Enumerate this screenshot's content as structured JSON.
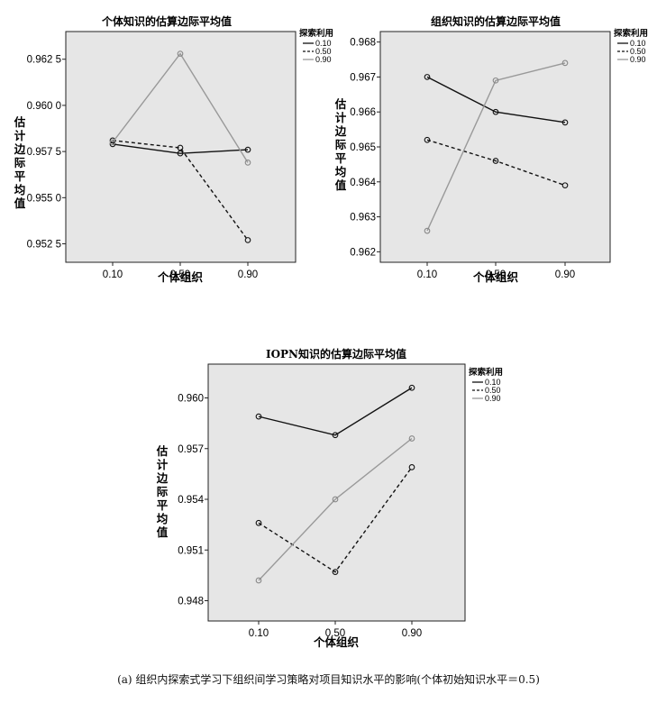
{
  "caption": "(a) 组织内探索式学习下组织间学习策略对项目知识水平的影响(个体初始知识水平＝0.5)",
  "colors": {
    "panel_bg": "#e6e6e6",
    "line_010": "#111111",
    "line_050": "#111111",
    "line_090": "#999999"
  },
  "chart_data": [
    {
      "type": "line",
      "title": "个体知识的估算边际平均值",
      "xlabel": "个体组织",
      "ylabel": "估计边际平均值",
      "legend_title": "探索利用",
      "legend_position": "top-right-outside",
      "categories": [
        "0.10",
        "0.50",
        "0.90"
      ],
      "ylim": [
        0.9515,
        0.964
      ],
      "yticks": [
        "0.962 5",
        "0.960 0",
        "0.957 5",
        "0.955 0",
        "0.952 5"
      ],
      "ytick_values": [
        0.9625,
        0.96,
        0.9575,
        0.955,
        0.9525
      ],
      "grid": false,
      "series": [
        {
          "name": "0.10",
          "style": "solid",
          "values": [
            0.9579,
            0.9574,
            0.9576
          ]
        },
        {
          "name": "0.50",
          "style": "dashed",
          "values": [
            0.9581,
            0.9577,
            0.9527
          ]
        },
        {
          "name": "0.90",
          "style": "gray",
          "values": [
            0.958,
            0.9628,
            0.9569
          ]
        }
      ]
    },
    {
      "type": "line",
      "title": "组织知识的估算边际平均值",
      "xlabel": "个体组织",
      "ylabel": "估计边际平均值",
      "legend_title": "探索利用",
      "legend_position": "top-right-outside",
      "categories": [
        "0.10",
        "0.50",
        "0.90"
      ],
      "ylim": [
        0.9617,
        0.9683
      ],
      "yticks": [
        "0.968",
        "0.967",
        "0.966",
        "0.965",
        "0.964",
        "0.963",
        "0.962"
      ],
      "ytick_values": [
        0.968,
        0.967,
        0.966,
        0.965,
        0.964,
        0.963,
        0.962
      ],
      "grid": false,
      "series": [
        {
          "name": "0.10",
          "style": "solid",
          "values": [
            0.967,
            0.966,
            0.9657
          ]
        },
        {
          "name": "0.50",
          "style": "dashed",
          "values": [
            0.9652,
            0.9646,
            0.9639
          ]
        },
        {
          "name": "0.90",
          "style": "gray",
          "values": [
            0.9626,
            0.9669,
            0.9674
          ]
        }
      ]
    },
    {
      "type": "line",
      "title": "IOPN知识的估算边际平均值",
      "xlabel": "个体组织",
      "ylabel": "估计边际平均值",
      "legend_title": "探索利用",
      "legend_position": "top-right-outside",
      "categories": [
        "0.10",
        "0.50",
        "0.90"
      ],
      "ylim": [
        0.9468,
        0.962
      ],
      "yticks": [
        "0.960",
        "0.957",
        "0.954",
        "0.951",
        "0.948"
      ],
      "ytick_values": [
        0.96,
        0.957,
        0.954,
        0.951,
        0.948
      ],
      "grid": false,
      "series": [
        {
          "name": "0.10",
          "style": "solid",
          "values": [
            0.9589,
            0.9578,
            0.9606
          ]
        },
        {
          "name": "0.50",
          "style": "dashed",
          "values": [
            0.9526,
            0.9497,
            0.9559
          ]
        },
        {
          "name": "0.90",
          "style": "gray",
          "values": [
            0.9492,
            0.954,
            0.9576
          ]
        }
      ]
    }
  ]
}
